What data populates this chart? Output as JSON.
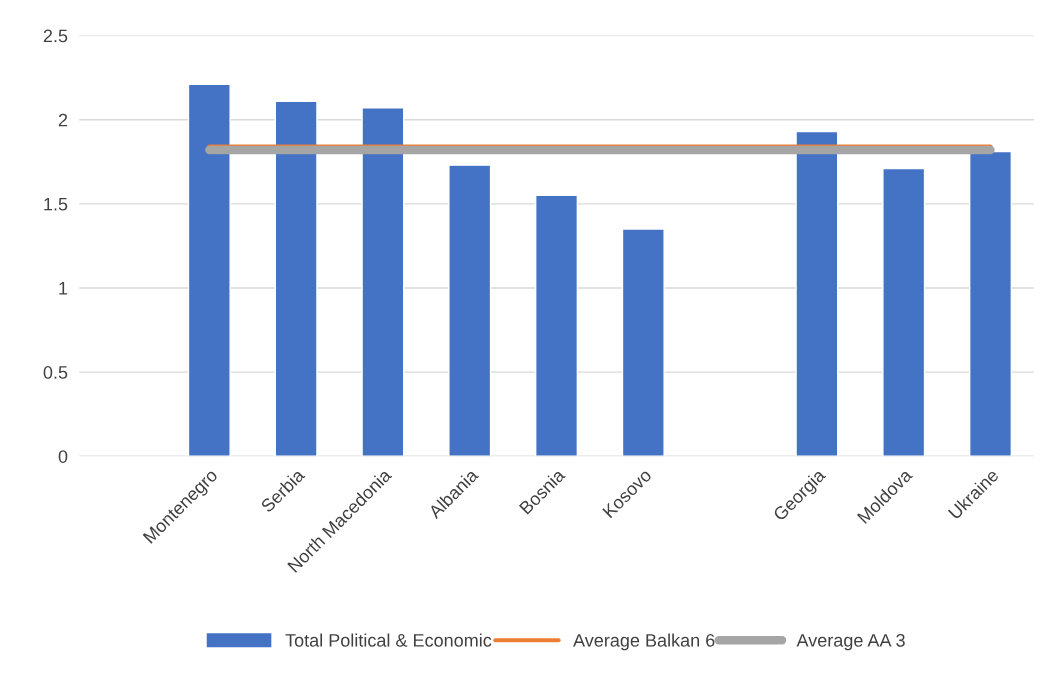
{
  "chart_data": {
    "type": "bar",
    "categories": [
      null,
      "Montenegro",
      "Serbia",
      "North Macedonia",
      "Albania",
      "Bosnia",
      "Kosovo",
      null,
      "Georgia",
      "Moldova",
      "Ukraine"
    ],
    "series": [
      {
        "name": "Total Political & Economic",
        "color": "#4472c4",
        "values": [
          null,
          2.21,
          2.11,
          2.07,
          1.73,
          1.55,
          1.35,
          null,
          1.93,
          1.71,
          1.81
        ]
      },
      {
        "name": "Average Balkan 6",
        "type": "line",
        "color": "#ed7d31",
        "values": [
          null,
          1.84,
          1.84,
          1.84,
          1.84,
          1.84,
          1.84,
          1.84,
          1.84,
          1.84,
          1.84
        ]
      },
      {
        "name": "Average AA 3",
        "type": "line",
        "color": "#a5a5a5",
        "values": [
          null,
          1.82,
          1.82,
          1.82,
          1.82,
          1.82,
          1.82,
          1.82,
          1.82,
          1.82,
          1.82
        ]
      }
    ],
    "ylim": [
      0,
      2.5
    ],
    "yticks": [
      0,
      0.5,
      1,
      1.5,
      2,
      2.5
    ],
    "grid": "y",
    "legend": "bottom"
  }
}
